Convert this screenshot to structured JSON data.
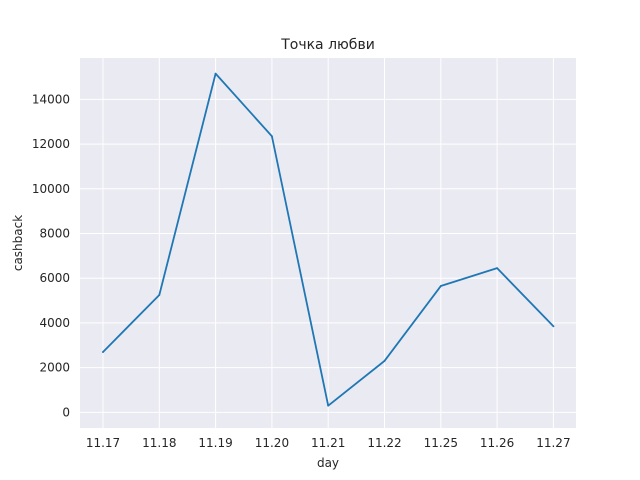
{
  "chart_data": {
    "type": "line",
    "title": "Точка любви",
    "xlabel": "day",
    "ylabel": "cashback",
    "categories": [
      "11.17",
      "11.18",
      "11.19",
      "11.20",
      "11.21",
      "11.22",
      "11.25",
      "11.26",
      "11.27"
    ],
    "series": [
      {
        "values": [
          2700,
          5250,
          15150,
          12350,
          300,
          2300,
          5650,
          6450,
          3850
        ],
        "color": "#1f77b4"
      }
    ],
    "ylim": [
      -700,
      15850
    ],
    "yticks": [
      0,
      2000,
      4000,
      6000,
      8000,
      10000,
      12000,
      14000
    ],
    "grid": true,
    "background": "#eaeaf2",
    "grid_color": "#ffffff"
  }
}
